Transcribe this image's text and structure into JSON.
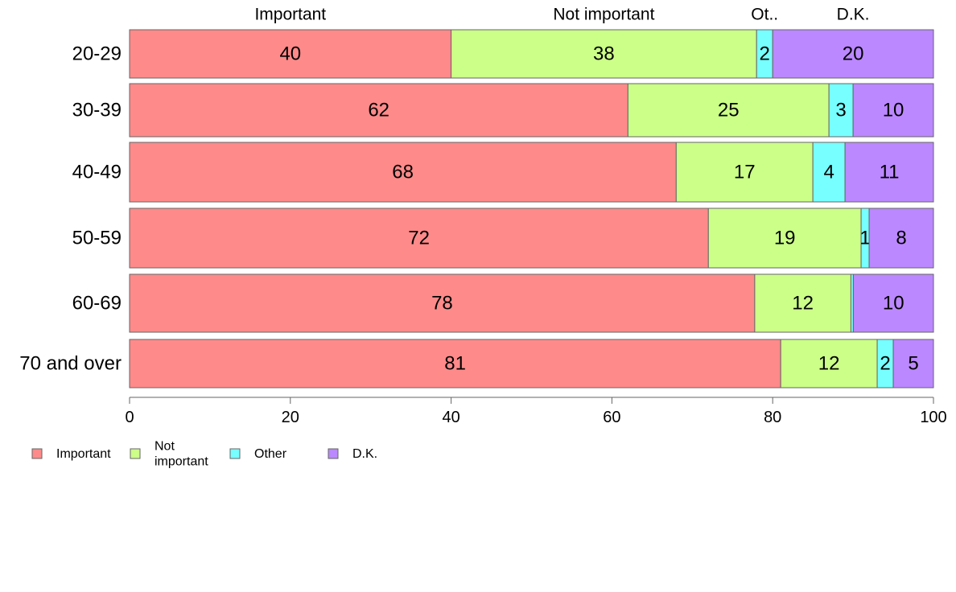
{
  "chart_data": {
    "type": "bar",
    "orientation": "horizontal",
    "stacked": true,
    "categories": [
      "20-29",
      "30-39",
      "40-49",
      "50-59",
      "60-69",
      "70 and over"
    ],
    "series": [
      {
        "name": "Important",
        "color": "#ff8a8a",
        "values": [
          40,
          62,
          68,
          72,
          78,
          81
        ],
        "labels": [
          "40",
          "62",
          "68",
          "72",
          "78",
          "81"
        ]
      },
      {
        "name": "Not important",
        "color": "#ccff88",
        "values": [
          38,
          25,
          17,
          19,
          12,
          12
        ],
        "labels": [
          "38",
          "25",
          "17",
          "19",
          "12",
          "12"
        ]
      },
      {
        "name": "Other",
        "color": "#77ffff",
        "values": [
          2,
          3,
          4,
          1,
          0.3,
          2
        ],
        "labels": [
          "2",
          "3",
          "4",
          "1",
          "",
          "2"
        ]
      },
      {
        "name": "D.K.",
        "color": "#bb88ff",
        "values": [
          20,
          10,
          11,
          8,
          10,
          5
        ],
        "labels": [
          "20",
          "10",
          "11",
          "8",
          "10",
          "5"
        ]
      }
    ],
    "top_labels": [
      "Important",
      "Not important",
      "Ot..",
      "D.K."
    ],
    "xlim": [
      0,
      100
    ],
    "xticks": [
      "0",
      "20",
      "40",
      "60",
      "80",
      "100"
    ],
    "grid": false,
    "legend": {
      "placement": "bottom-left",
      "entries": [
        {
          "lines": [
            "Important"
          ]
        },
        {
          "lines": [
            "Not",
            "important"
          ]
        },
        {
          "lines": [
            "Other"
          ]
        },
        {
          "lines": [
            "D.K."
          ]
        }
      ]
    }
  }
}
